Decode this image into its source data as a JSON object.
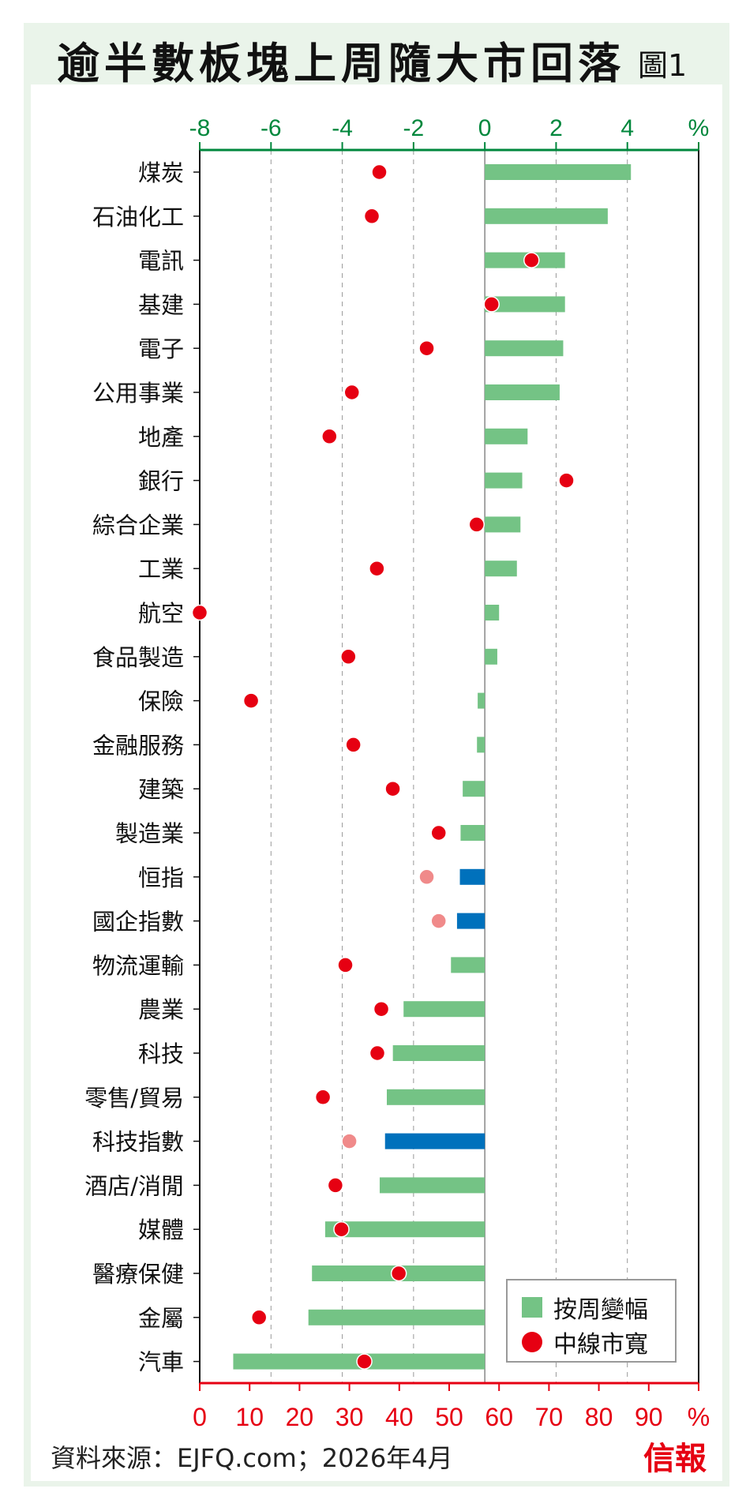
{
  "title": "逾半數板塊上周隨大市回落",
  "figure_label": "圖1",
  "source": "資料來源：EJFQ.com；2026年4月",
  "logo": "信報",
  "colors": {
    "bar": "#74c385",
    "bar_index": "#0071bc",
    "dot": "#e60012",
    "dot_index": "#f08a8a",
    "top_axis": "#00873c",
    "bottom_axis": "#e60012",
    "panel": "#eaf4ea"
  },
  "chart_data": {
    "type": "bar",
    "title": "逾半數板塊上周隨大市回落",
    "categories": [
      "煤炭",
      "石油化工",
      "電訊",
      "基建",
      "電子",
      "公用事業",
      "地產",
      "銀行",
      "綜合企業",
      "工業",
      "航空",
      "食品製造",
      "保險",
      "金融服務",
      "建築",
      "製造業",
      "恒指",
      "國企指數",
      "物流運輸",
      "農業",
      "科技",
      "零售/貿易",
      "科技指數",
      "酒店/消閒",
      "媒體",
      "醫療保健",
      "金屬",
      "汽車"
    ],
    "is_index": [
      false,
      false,
      false,
      false,
      false,
      false,
      false,
      false,
      false,
      false,
      false,
      false,
      false,
      false,
      false,
      false,
      true,
      true,
      false,
      false,
      false,
      false,
      true,
      false,
      false,
      false,
      false,
      false
    ],
    "series": [
      {
        "name": "按周變幅",
        "axis": "top",
        "unit": "%",
        "values": [
          4.1,
          3.45,
          2.25,
          2.25,
          2.2,
          2.1,
          1.2,
          1.05,
          1.0,
          0.9,
          0.4,
          0.35,
          -0.2,
          -0.22,
          -0.62,
          -0.68,
          -0.7,
          -0.78,
          -0.95,
          -2.28,
          -2.58,
          -2.75,
          -2.8,
          -2.95,
          -4.48,
          -4.85,
          -4.95,
          -7.06
        ]
      },
      {
        "name": "中線市寬",
        "axis": "bottom",
        "unit": "%",
        "values": [
          36,
          34.5,
          66.5,
          58.5,
          45.5,
          30.5,
          26,
          73.5,
          55.5,
          35.5,
          0,
          29.8,
          10.3,
          30.8,
          38.7,
          47.9,
          45.5,
          47.9,
          29.2,
          36.4,
          35.6,
          24.7,
          30,
          27.2,
          28.4,
          39.9,
          11.9,
          33
        ]
      }
    ],
    "top_axis": {
      "range": [
        -8,
        6
      ],
      "ticks": [
        "-8",
        "-6",
        "-4",
        "-2",
        "0",
        "2",
        "4",
        "%"
      ]
    },
    "bottom_axis": {
      "range": [
        0,
        100
      ],
      "ticks": [
        "0",
        "10",
        "20",
        "30",
        "40",
        "50",
        "60",
        "70",
        "80",
        "90",
        "%"
      ]
    },
    "legend": {
      "position": "bottom-right",
      "entries": [
        "按周變幅",
        "中線市寬"
      ]
    },
    "grid": true
  }
}
